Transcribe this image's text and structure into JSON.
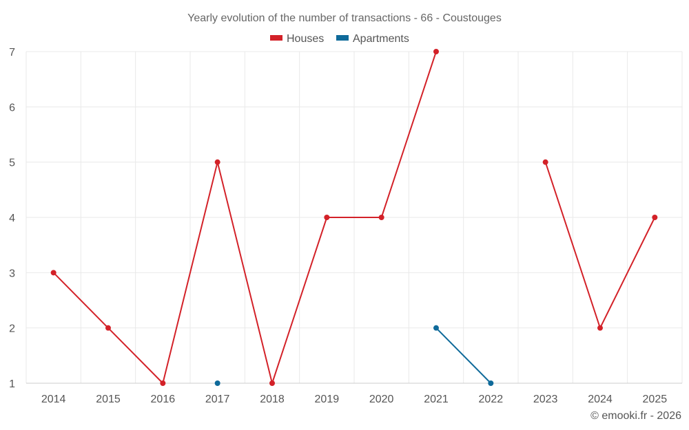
{
  "chart_data": {
    "type": "line",
    "title": "Yearly evolution of the number of transactions - 66 - Coustouges",
    "xlabel": "",
    "ylabel": "",
    "categories": [
      "2014",
      "2015",
      "2016",
      "2017",
      "2018",
      "2019",
      "2020",
      "2021",
      "2022",
      "2023",
      "2024",
      "2025"
    ],
    "ylim": [
      1,
      7
    ],
    "yticks": [
      1,
      2,
      3,
      4,
      5,
      6,
      7
    ],
    "grid": true,
    "legend_position": "top-center",
    "series": [
      {
        "name": "Houses",
        "color": "#d32128",
        "values": [
          3,
          2,
          1,
          5,
          1,
          4,
          4,
          7,
          null,
          5,
          2,
          4
        ]
      },
      {
        "name": "Apartments",
        "color": "#0f6a9a",
        "values": [
          null,
          null,
          null,
          1,
          null,
          null,
          null,
          2,
          1,
          null,
          null,
          null
        ]
      }
    ]
  },
  "credit": "© emooki.fr - 2026"
}
